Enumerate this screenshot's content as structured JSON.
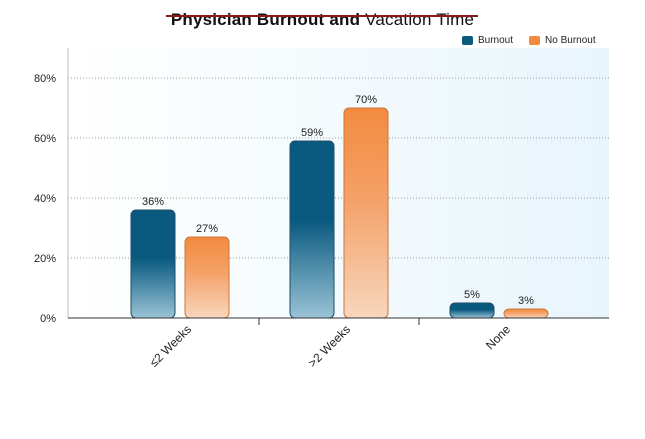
{
  "chart_data": {
    "type": "bar",
    "title_bold": "Physician Burnout and",
    "title_light": "Vacation Time",
    "categories": [
      "≤2 Weeks",
      ">2 Weeks",
      "None"
    ],
    "series": [
      {
        "name": "Burnout",
        "values": [
          36,
          59,
          5
        ],
        "labels": [
          "36%",
          "59%",
          "5%"
        ],
        "color": "#0a5a80"
      },
      {
        "name": "No Burnout",
        "values": [
          27,
          70,
          3
        ],
        "labels": [
          "27%",
          "70%",
          "3%"
        ],
        "color": "#f28a3e"
      }
    ],
    "y_ticks": [
      "0%",
      "20%",
      "40%",
      "60%",
      "80%"
    ],
    "ylim": [
      0,
      90
    ],
    "grid": true,
    "legend_position": "top-right"
  }
}
